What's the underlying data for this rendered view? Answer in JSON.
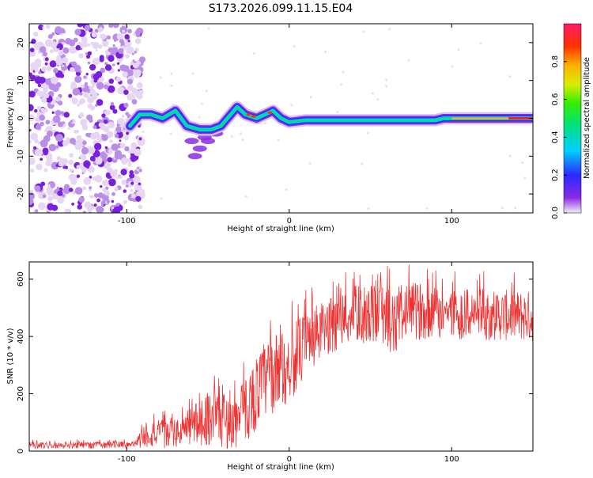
{
  "title": "S173.2026.099.11.15.E04",
  "chart_data": [
    {
      "type": "heatmap",
      "xlabel": "Height of straight line (km)",
      "ylabel": "Frequency (Hz)",
      "xlim": [
        -160,
        150
      ],
      "ylim": [
        -25,
        25
      ],
      "xticks": [
        -100,
        0,
        100
      ],
      "yticks": [
        -20,
        -10,
        0,
        10,
        20
      ],
      "colorbar": {
        "label": "Normalized spectral amplitude",
        "range": [
          0,
          1
        ],
        "ticks": [
          0.0,
          0.2,
          0.4,
          0.6,
          0.8
        ]
      },
      "noise_region_x": [
        -160,
        -95
      ],
      "signal_trace": [
        {
          "x": -98,
          "freq": -2
        },
        {
          "x": -92,
          "freq": 1
        },
        {
          "x": -85,
          "freq": 1
        },
        {
          "x": -78,
          "freq": 0
        },
        {
          "x": -70,
          "freq": 2
        },
        {
          "x": -63,
          "freq": -2
        },
        {
          "x": -55,
          "freq": -3
        },
        {
          "x": -48,
          "freq": -3
        },
        {
          "x": -42,
          "freq": -2
        },
        {
          "x": -36,
          "freq": 1
        },
        {
          "x": -32,
          "freq": 3
        },
        {
          "x": -27,
          "freq": 1
        },
        {
          "x": -20,
          "freq": 0
        },
        {
          "x": -15,
          "freq": 1
        },
        {
          "x": -10,
          "freq": 2
        },
        {
          "x": -5,
          "freq": 0
        },
        {
          "x": 0,
          "freq": -1
        },
        {
          "x": 10,
          "freq": -0.5
        },
        {
          "x": 30,
          "freq": -0.5
        },
        {
          "x": 60,
          "freq": -0.5
        },
        {
          "x": 90,
          "freq": -0.5
        },
        {
          "x": 95,
          "freq": 0
        },
        {
          "x": 120,
          "freq": 0
        },
        {
          "x": 150,
          "freq": 0
        }
      ],
      "scatter_branch": [
        {
          "x": -60,
          "freq": -6
        },
        {
          "x": -55,
          "freq": -8
        },
        {
          "x": -50,
          "freq": -6
        },
        {
          "x": -45,
          "freq": -4
        },
        {
          "x": -58,
          "freq": -10
        },
        {
          "x": -52,
          "freq": -5
        }
      ]
    },
    {
      "type": "line",
      "xlabel": "Height of straight line (km)",
      "ylabel": "SNR (10 * v/v)",
      "xlim": [
        -160,
        150
      ],
      "ylim": [
        0,
        660
      ],
      "xticks": [
        -100,
        0,
        100
      ],
      "yticks": [
        0,
        200,
        400,
        600
      ],
      "series": [
        {
          "name": "SNR",
          "color": "#ee3333",
          "envelope": [
            {
              "x": -160,
              "base": 20,
              "amp": 12
            },
            {
              "x": -95,
              "base": 22,
              "amp": 12
            },
            {
              "x": -88,
              "base": 60,
              "amp": 50
            },
            {
              "x": -70,
              "base": 60,
              "amp": 50
            },
            {
              "x": -60,
              "base": 90,
              "amp": 70
            },
            {
              "x": -45,
              "base": 130,
              "amp": 110
            },
            {
              "x": -35,
              "base": 90,
              "amp": 90
            },
            {
              "x": -25,
              "base": 160,
              "amp": 120
            },
            {
              "x": -15,
              "base": 250,
              "amp": 140
            },
            {
              "x": 0,
              "base": 300,
              "amp": 130
            },
            {
              "x": 10,
              "base": 370,
              "amp": 120
            },
            {
              "x": 20,
              "base": 420,
              "amp": 100
            },
            {
              "x": 40,
              "base": 480,
              "amp": 100
            },
            {
              "x": 60,
              "base": 470,
              "amp": 110
            },
            {
              "x": 80,
              "base": 490,
              "amp": 100
            },
            {
              "x": 100,
              "base": 480,
              "amp": 90
            },
            {
              "x": 150,
              "base": 470,
              "amp": 90
            }
          ]
        }
      ]
    }
  ]
}
